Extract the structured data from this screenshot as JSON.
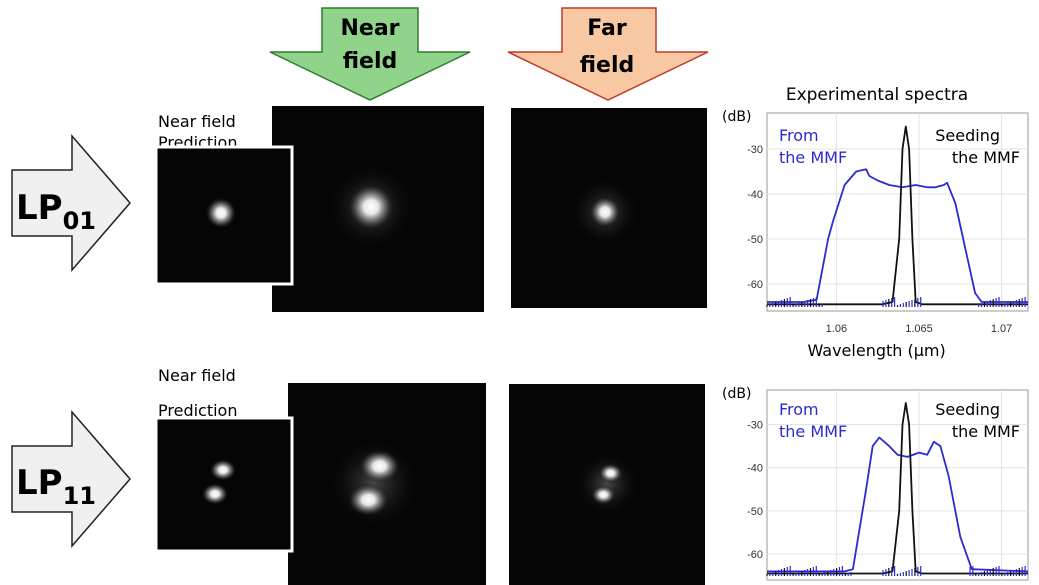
{
  "headers": {
    "near_field": [
      "Near",
      "field"
    ],
    "far_field": [
      "Far",
      "field"
    ]
  },
  "colors": {
    "near_arrow": "#8fd48a",
    "near_arrow_edge": "#2e7d2e",
    "far_arrow": "#f7c8a2",
    "far_arrow_edge": "#c0392b",
    "mode_arrow": "#f0f0f0",
    "trace_mmf": "#2b2bd0",
    "trace_seed": "#111111"
  },
  "prediction_label": [
    "Near field",
    "Prediction"
  ],
  "spectra_title": "Experimental spectra",
  "modes": [
    {
      "base": "LP",
      "sub": "01",
      "lobes": [
        {
          "dx": 0,
          "dy": 0
        }
      ]
    },
    {
      "base": "LP",
      "sub": "11",
      "lobes": [
        {
          "dx": 4,
          "dy": -12
        },
        {
          "dx": -4,
          "dy": 12
        }
      ]
    }
  ],
  "legend": {
    "from": [
      "From",
      "the MMF"
    ],
    "seed": [
      "Seeding",
      "the MMF"
    ]
  },
  "chart_data": [
    {
      "type": "line",
      "ylabel": "(dB)",
      "xlabel": "Wavelength (µm)",
      "xlim": [
        1.0558,
        1.0716
      ],
      "ylim": [
        -66,
        -22
      ],
      "xticks": [
        "1.06",
        "1.065",
        "1.07"
      ],
      "yticks": [
        "-30",
        "-40",
        "-50",
        "-60"
      ],
      "series": [
        {
          "name": "From the MMF",
          "x": [
            1.0558,
            1.058,
            1.0588,
            1.0595,
            1.0598,
            1.0605,
            1.0612,
            1.0618,
            1.062,
            1.0625,
            1.0632,
            1.064,
            1.0648,
            1.0655,
            1.066,
            1.0665,
            1.0667,
            1.0672,
            1.0678,
            1.0684,
            1.0688,
            1.0716
          ],
          "y": [
            -64,
            -64,
            -63.5,
            -50,
            -46,
            -38,
            -35,
            -34.5,
            -36,
            -37,
            -38,
            -38.5,
            -38,
            -38.5,
            -38.5,
            -38,
            -37.5,
            -42,
            -52,
            -62,
            -64,
            -64
          ]
        },
        {
          "name": "Seeding the MMF",
          "x": [
            1.0558,
            1.0628,
            1.0634,
            1.0638,
            1.064,
            1.0642,
            1.0644,
            1.0646,
            1.0648,
            1.0652,
            1.0716
          ],
          "y": [
            -64.5,
            -64.5,
            -64,
            -50,
            -30,
            -25,
            -30,
            -50,
            -64,
            -64.5,
            -64.5
          ]
        }
      ]
    },
    {
      "type": "line",
      "ylabel": "(dB)",
      "xlim": [
        1.0558,
        1.0716
      ],
      "ylim": [
        -66,
        -22
      ],
      "yticks": [
        "-30",
        "-40",
        "-50",
        "-60"
      ],
      "series": [
        {
          "name": "From the MMF",
          "x": [
            1.0558,
            1.0605,
            1.061,
            1.0618,
            1.0622,
            1.0626,
            1.0632,
            1.0637,
            1.0643,
            1.065,
            1.0655,
            1.0659,
            1.0663,
            1.0668,
            1.0675,
            1.0682,
            1.0716
          ],
          "y": [
            -64,
            -64,
            -63.5,
            -45,
            -35,
            -33,
            -35,
            -37,
            -37.5,
            -36.5,
            -37,
            -34,
            -35,
            -42,
            -56,
            -63.5,
            -64
          ]
        },
        {
          "name": "Seeding the MMF",
          "x": [
            1.0558,
            1.0628,
            1.0634,
            1.0638,
            1.064,
            1.0642,
            1.0644,
            1.0646,
            1.0648,
            1.0652,
            1.0716
          ],
          "y": [
            -64.5,
            -64.5,
            -64,
            -50,
            -30,
            -25,
            -30,
            -50,
            -64,
            -64.5,
            -64.5
          ]
        }
      ]
    }
  ]
}
